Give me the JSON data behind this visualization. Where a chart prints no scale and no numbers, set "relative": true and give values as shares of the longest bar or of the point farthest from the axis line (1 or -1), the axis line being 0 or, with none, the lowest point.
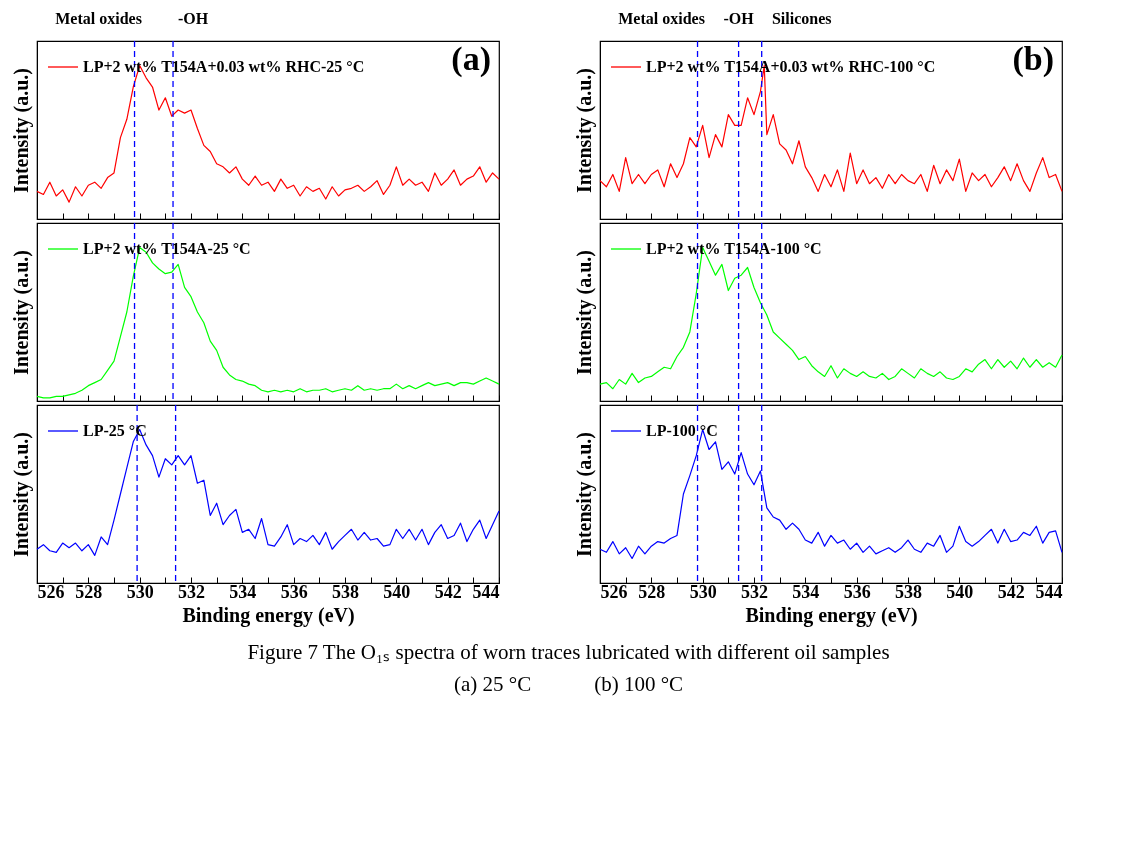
{
  "chart_data": [
    {
      "type": "line",
      "title": "(a)",
      "ylabel": "Intensity (a.u.)",
      "relative": true,
      "legend": "top left",
      "tick_labels": false,
      "xlim": [
        526,
        544
      ],
      "xticks": [
        526,
        {
          "value": 527,
          "label": null
        },
        528,
        {
          "value": 529,
          "label": null
        },
        530,
        {
          "value": 531,
          "label": null
        },
        532,
        {
          "value": 533,
          "label": null
        },
        534,
        {
          "value": 535,
          "label": null
        },
        536,
        {
          "value": 537,
          "label": null
        },
        538,
        {
          "value": 539,
          "label": null
        },
        540,
        {
          "value": 541,
          "label": null
        },
        542,
        {
          "value": 543,
          "label": null
        },
        544
      ],
      "ref_lines": [
        {
          "axis": "x",
          "value": 529.8,
          "color": "#0000ff",
          "line_style": "dashed"
        },
        {
          "axis": "x",
          "value": 531.3,
          "color": "#0000ff",
          "line_style": "dashed"
        }
      ],
      "annotations": [
        "Metal oxides",
        "-OH",
        "Figure 7 The O₁ₛ spectra of worn traces lubricated with different oil samples",
        "(a) 25 °C            (b) 100 °C"
      ],
      "x": [
        526,
        526.25,
        526.5,
        526.75,
        527,
        527.25,
        527.5,
        527.75,
        528,
        528.25,
        528.5,
        528.75,
        529,
        529.25,
        529.5,
        529.75,
        530,
        530.25,
        530.5,
        530.75,
        531,
        531.25,
        531.5,
        531.75,
        532,
        532.25,
        532.5,
        532.75,
        533,
        533.25,
        533.5,
        533.75,
        534,
        534.25,
        534.5,
        534.75,
        535,
        535.25,
        535.5,
        535.75,
        536,
        536.25,
        536.5,
        536.75,
        537,
        537.25,
        537.5,
        537.75,
        538,
        538.25,
        538.5,
        538.75,
        539,
        539.25,
        539.5,
        539.75,
        540,
        540.25,
        540.5,
        540.75,
        541,
        541.25,
        541.5,
        541.75,
        542,
        542.25,
        542.5,
        542.75,
        543,
        543.25,
        543.5,
        543.75,
        544
      ],
      "series": [
        {
          "name": "LP+2 wt% T154A+0.03 wt% RHC-25 °C",
          "color": "#ff0000",
          "values": [
            0.18,
            0.16,
            0.24,
            0.15,
            0.19,
            0.11,
            0.21,
            0.15,
            0.22,
            0.24,
            0.2,
            0.27,
            0.3,
            0.53,
            0.65,
            0.86,
            1.0,
            0.92,
            0.86,
            0.71,
            0.79,
            0.67,
            0.71,
            0.69,
            0.71,
            0.59,
            0.48,
            0.44,
            0.36,
            0.34,
            0.3,
            0.34,
            0.26,
            0.22,
            0.28,
            0.22,
            0.24,
            0.18,
            0.26,
            0.2,
            0.22,
            0.15,
            0.21,
            0.18,
            0.2,
            0.13,
            0.21,
            0.15,
            0.19,
            0.2,
            0.22,
            0.18,
            0.21,
            0.25,
            0.16,
            0.22,
            0.34,
            0.22,
            0.26,
            0.22,
            0.24,
            0.18,
            0.3,
            0.22,
            0.26,
            0.32,
            0.22,
            0.26,
            0.28,
            0.34,
            0.24,
            0.3,
            0.26
          ]
        }
      ]
    },
    {
      "type": "line",
      "title": "(b)",
      "ylabel": "Intensity (a.u.)",
      "relative": true,
      "legend": "top left",
      "tick_labels": false,
      "xlim": [
        526,
        544
      ],
      "xticks": [
        526,
        {
          "value": 527,
          "label": null
        },
        528,
        {
          "value": 529,
          "label": null
        },
        530,
        {
          "value": 531,
          "label": null
        },
        532,
        {
          "value": 533,
          "label": null
        },
        534,
        {
          "value": 535,
          "label": null
        },
        536,
        {
          "value": 537,
          "label": null
        },
        538,
        {
          "value": 539,
          "label": null
        },
        540,
        {
          "value": 541,
          "label": null
        },
        542,
        {
          "value": 543,
          "label": null
        },
        544
      ],
      "ref_lines": [
        {
          "axis": "x",
          "value": 529.8,
          "color": "#0000ff",
          "line_style": "dashed"
        },
        {
          "axis": "x",
          "value": 531.4,
          "color": "#0000ff",
          "line_style": "dashed"
        },
        {
          "axis": "x",
          "value": 532.3,
          "color": "#0000ff",
          "line_style": "dashed"
        }
      ],
      "annotations": [
        "Metal oxides",
        "-OH",
        "Silicones"
      ],
      "x": [
        526,
        526.25,
        526.5,
        526.75,
        527,
        527.25,
        527.5,
        527.75,
        528,
        528.25,
        528.5,
        528.75,
        529,
        529.25,
        529.5,
        529.75,
        530,
        530.25,
        530.5,
        530.75,
        531,
        531.25,
        531.5,
        531.75,
        532,
        532.25,
        532.4,
        532.5,
        532.75,
        533,
        533.25,
        533.5,
        533.75,
        534,
        534.25,
        534.5,
        534.75,
        535,
        535.25,
        535.5,
        535.75,
        536,
        536.25,
        536.5,
        536.75,
        537,
        537.25,
        537.5,
        537.75,
        538,
        538.25,
        538.5,
        538.75,
        539,
        539.25,
        539.5,
        539.75,
        540,
        540.25,
        540.5,
        540.75,
        541,
        541.25,
        541.5,
        541.75,
        542,
        542.25,
        542.5,
        542.75,
        543,
        543.25,
        543.5,
        543.75,
        544
      ],
      "series": [
        {
          "name": "LP+2 wt% T154A+0.03 wt% RHC-100 °C",
          "color": "#ff0000",
          "values": [
            0.25,
            0.21,
            0.29,
            0.18,
            0.4,
            0.23,
            0.29,
            0.23,
            0.29,
            0.32,
            0.21,
            0.36,
            0.27,
            0.36,
            0.53,
            0.47,
            0.61,
            0.4,
            0.55,
            0.47,
            0.68,
            0.61,
            0.61,
            0.79,
            0.68,
            0.83,
            1.0,
            0.55,
            0.68,
            0.49,
            0.45,
            0.36,
            0.51,
            0.34,
            0.27,
            0.18,
            0.29,
            0.21,
            0.32,
            0.18,
            0.43,
            0.23,
            0.32,
            0.23,
            0.27,
            0.2,
            0.29,
            0.23,
            0.29,
            0.25,
            0.23,
            0.29,
            0.18,
            0.35,
            0.23,
            0.32,
            0.25,
            0.39,
            0.18,
            0.3,
            0.25,
            0.29,
            0.21,
            0.27,
            0.34,
            0.25,
            0.36,
            0.25,
            0.18,
            0.3,
            0.4,
            0.27,
            0.29,
            0.18
          ]
        }
      ]
    },
    {
      "type": "line",
      "ylabel": "Intensity (a.u.)",
      "relative": true,
      "legend": "top left",
      "tick_labels": false,
      "xlim": [
        526,
        544
      ],
      "xticks": [
        526,
        {
          "value": 527,
          "label": null
        },
        528,
        {
          "value": 529,
          "label": null
        },
        530,
        {
          "value": 531,
          "label": null
        },
        532,
        {
          "value": 533,
          "label": null
        },
        534,
        {
          "value": 535,
          "label": null
        },
        536,
        {
          "value": 537,
          "label": null
        },
        538,
        {
          "value": 539,
          "label": null
        },
        540,
        {
          "value": 541,
          "label": null
        },
        542,
        {
          "value": 543,
          "label": null
        },
        544
      ],
      "ref_lines": [
        {
          "axis": "x",
          "value": 529.8,
          "color": "#0000ff",
          "line_style": "dashed"
        },
        {
          "axis": "x",
          "value": 531.3,
          "color": "#0000ff",
          "line_style": "dashed"
        }
      ],
      "x": [
        526,
        526.25,
        526.5,
        526.75,
        527,
        527.25,
        527.5,
        527.75,
        528,
        528.25,
        528.5,
        528.75,
        529,
        529.25,
        529.5,
        529.75,
        530,
        530.25,
        530.5,
        530.75,
        531,
        531.25,
        531.5,
        531.75,
        532,
        532.25,
        532.5,
        532.75,
        533,
        533.25,
        533.5,
        533.75,
        534,
        534.25,
        534.5,
        534.75,
        535,
        535.25,
        535.5,
        535.75,
        536,
        536.25,
        536.5,
        536.75,
        537,
        537.25,
        537.5,
        537.75,
        538,
        538.25,
        538.5,
        538.75,
        539,
        539.25,
        539.5,
        539.75,
        540,
        540.25,
        540.5,
        540.75,
        541,
        541.25,
        541.5,
        541.75,
        542,
        542.25,
        542.5,
        542.75,
        543,
        543.25,
        543.5,
        543.75,
        544
      ],
      "series": [
        {
          "name": "LP+2 wt% T154A-25 °C",
          "color": "#00ff00",
          "values": [
            0.03,
            0.02,
            0.02,
            0.03,
            0.03,
            0.04,
            0.05,
            0.07,
            0.1,
            0.12,
            0.14,
            0.2,
            0.26,
            0.42,
            0.58,
            0.81,
            1.0,
            0.97,
            0.9,
            0.86,
            0.83,
            0.84,
            0.89,
            0.74,
            0.68,
            0.58,
            0.51,
            0.39,
            0.33,
            0.22,
            0.17,
            0.14,
            0.13,
            0.11,
            0.1,
            0.07,
            0.06,
            0.07,
            0.06,
            0.07,
            0.06,
            0.08,
            0.06,
            0.07,
            0.07,
            0.08,
            0.06,
            0.07,
            0.08,
            0.07,
            0.1,
            0.07,
            0.08,
            0.07,
            0.08,
            0.08,
            0.11,
            0.08,
            0.1,
            0.08,
            0.1,
            0.12,
            0.1,
            0.11,
            0.12,
            0.1,
            0.12,
            0.12,
            0.11,
            0.13,
            0.15,
            0.13,
            0.11
          ]
        }
      ]
    },
    {
      "type": "line",
      "ylabel": "Intensity (a.u.)",
      "relative": true,
      "legend": "top left",
      "tick_labels": false,
      "xlim": [
        526,
        544
      ],
      "xticks": [
        526,
        {
          "value": 527,
          "label": null
        },
        528,
        {
          "value": 529,
          "label": null
        },
        530,
        {
          "value": 531,
          "label": null
        },
        532,
        {
          "value": 533,
          "label": null
        },
        534,
        {
          "value": 535,
          "label": null
        },
        536,
        {
          "value": 537,
          "label": null
        },
        538,
        {
          "value": 539,
          "label": null
        },
        540,
        {
          "value": 541,
          "label": null
        },
        542,
        {
          "value": 543,
          "label": null
        },
        544
      ],
      "ref_lines": [
        {
          "axis": "x",
          "value": 529.8,
          "color": "#0000ff",
          "line_style": "dashed"
        },
        {
          "axis": "x",
          "value": 531.4,
          "color": "#0000ff",
          "line_style": "dashed"
        },
        {
          "axis": "x",
          "value": 532.3,
          "color": "#0000ff",
          "line_style": "dashed"
        }
      ],
      "x": [
        526,
        526.25,
        526.5,
        526.75,
        527,
        527.25,
        527.5,
        527.75,
        528,
        528.25,
        528.5,
        528.75,
        529,
        529.25,
        529.5,
        529.75,
        530,
        530.25,
        530.5,
        530.75,
        531,
        531.25,
        531.5,
        531.75,
        532,
        532.25,
        532.5,
        532.75,
        533,
        533.25,
        533.5,
        533.75,
        534,
        534.25,
        534.5,
        534.75,
        535,
        535.25,
        535.5,
        535.75,
        536,
        536.25,
        536.5,
        536.75,
        537,
        537.25,
        537.5,
        537.75,
        538,
        538.25,
        538.5,
        538.75,
        539,
        539.25,
        539.5,
        539.75,
        540,
        540.25,
        540.5,
        540.75,
        541,
        541.25,
        541.5,
        541.75,
        542,
        542.25,
        542.5,
        542.75,
        543,
        543.25,
        543.5,
        543.75,
        544
      ],
      "series": [
        {
          "name": "LP+2 wt% T154A-100 °C",
          "color": "#00ff00",
          "values": [
            0.11,
            0.12,
            0.08,
            0.14,
            0.11,
            0.18,
            0.12,
            0.15,
            0.16,
            0.19,
            0.22,
            0.21,
            0.29,
            0.35,
            0.45,
            0.7,
            1.0,
            0.91,
            0.82,
            0.89,
            0.72,
            0.8,
            0.82,
            0.87,
            0.74,
            0.64,
            0.56,
            0.45,
            0.41,
            0.37,
            0.33,
            0.27,
            0.29,
            0.23,
            0.19,
            0.16,
            0.23,
            0.15,
            0.21,
            0.18,
            0.16,
            0.19,
            0.16,
            0.15,
            0.18,
            0.14,
            0.16,
            0.21,
            0.18,
            0.15,
            0.21,
            0.18,
            0.16,
            0.19,
            0.15,
            0.14,
            0.16,
            0.21,
            0.19,
            0.24,
            0.27,
            0.21,
            0.27,
            0.22,
            0.26,
            0.21,
            0.28,
            0.22,
            0.27,
            0.22,
            0.25,
            0.22,
            0.3
          ]
        }
      ]
    },
    {
      "type": "line",
      "xlabel": "Binding energy (eV)",
      "ylabel": "Intensity (a.u.)",
      "relative": true,
      "legend": "top left",
      "tick_labels": "x",
      "xlim": [
        526,
        544
      ],
      "xticks": [
        526,
        {
          "value": 527,
          "label": null
        },
        528,
        {
          "value": 529,
          "label": null
        },
        530,
        {
          "value": 531,
          "label": null
        },
        532,
        {
          "value": 533,
          "label": null
        },
        534,
        {
          "value": 535,
          "label": null
        },
        536,
        {
          "value": 537,
          "label": null
        },
        538,
        {
          "value": 539,
          "label": null
        },
        540,
        {
          "value": 541,
          "label": null
        },
        542,
        {
          "value": 543,
          "label": null
        },
        544
      ],
      "ref_lines": [
        {
          "axis": "x",
          "value": 529.9,
          "color": "#0000ff",
          "line_style": "dashed"
        },
        {
          "axis": "x",
          "value": 531.4,
          "color": "#0000ff",
          "line_style": "dashed"
        }
      ],
      "x": [
        526,
        526.25,
        526.5,
        526.75,
        527,
        527.25,
        527.5,
        527.75,
        528,
        528.25,
        528.5,
        528.75,
        529,
        529.25,
        529.5,
        529.75,
        530,
        530.25,
        530.5,
        530.75,
        531,
        531.25,
        531.5,
        531.75,
        532,
        532.25,
        532.5,
        532.75,
        533,
        533.25,
        533.5,
        533.75,
        534,
        534.25,
        534.5,
        534.75,
        535,
        535.25,
        535.5,
        535.75,
        536,
        536.25,
        536.5,
        536.75,
        537,
        537.25,
        537.5,
        537.75,
        538,
        538.25,
        538.5,
        538.75,
        539,
        539.25,
        539.5,
        539.75,
        540,
        540.25,
        540.5,
        540.75,
        541,
        541.25,
        541.5,
        541.75,
        542,
        542.25,
        542.5,
        542.75,
        543,
        543.25,
        543.5,
        543.75,
        544
      ],
      "series": [
        {
          "name": "LP-25 °C",
          "color": "#0000ff",
          "values": [
            0.22,
            0.25,
            0.21,
            0.2,
            0.26,
            0.23,
            0.26,
            0.21,
            0.25,
            0.18,
            0.3,
            0.25,
            0.41,
            0.58,
            0.75,
            0.92,
            1.0,
            0.9,
            0.83,
            0.69,
            0.81,
            0.77,
            0.83,
            0.77,
            0.83,
            0.65,
            0.67,
            0.44,
            0.52,
            0.38,
            0.44,
            0.48,
            0.33,
            0.35,
            0.29,
            0.42,
            0.25,
            0.24,
            0.3,
            0.38,
            0.25,
            0.29,
            0.27,
            0.31,
            0.25,
            0.33,
            0.22,
            0.27,
            0.31,
            0.35,
            0.28,
            0.33,
            0.28,
            0.29,
            0.24,
            0.25,
            0.35,
            0.29,
            0.35,
            0.28,
            0.35,
            0.25,
            0.33,
            0.38,
            0.29,
            0.31,
            0.39,
            0.27,
            0.35,
            0.41,
            0.29,
            0.38,
            0.47
          ]
        }
      ]
    },
    {
      "type": "line",
      "xlabel": "Binding energy (eV)",
      "ylabel": "Intensity (a.u.)",
      "relative": true,
      "legend": "top left",
      "tick_labels": "x",
      "xlim": [
        526,
        544
      ],
      "xticks": [
        526,
        {
          "value": 527,
          "label": null
        },
        528,
        {
          "value": 529,
          "label": null
        },
        530,
        {
          "value": 531,
          "label": null
        },
        532,
        {
          "value": 533,
          "label": null
        },
        534,
        {
          "value": 535,
          "label": null
        },
        536,
        {
          "value": 537,
          "label": null
        },
        538,
        {
          "value": 539,
          "label": null
        },
        540,
        {
          "value": 541,
          "label": null
        },
        542,
        {
          "value": 543,
          "label": null
        },
        544
      ],
      "ref_lines": [
        {
          "axis": "x",
          "value": 529.8,
          "color": "#0000ff",
          "line_style": "dashed"
        },
        {
          "axis": "x",
          "value": 531.4,
          "color": "#0000ff",
          "line_style": "dashed"
        },
        {
          "axis": "x",
          "value": 532.3,
          "color": "#0000ff",
          "line_style": "dashed"
        }
      ],
      "x": [
        526,
        526.25,
        526.5,
        526.75,
        527,
        527.25,
        527.5,
        527.75,
        528,
        528.25,
        528.5,
        528.75,
        529,
        529.25,
        529.5,
        529.75,
        530,
        530.25,
        530.5,
        530.75,
        531,
        531.25,
        531.5,
        531.75,
        532,
        532.25,
        532.5,
        532.75,
        533,
        533.25,
        533.5,
        533.75,
        534,
        534.25,
        534.5,
        534.75,
        535,
        535.25,
        535.5,
        535.75,
        536,
        536.25,
        536.5,
        536.75,
        537,
        537.25,
        537.5,
        537.75,
        538,
        538.25,
        538.5,
        538.75,
        539,
        539.25,
        539.5,
        539.75,
        540,
        540.25,
        540.5,
        540.75,
        541,
        541.25,
        541.5,
        541.75,
        542,
        542.25,
        542.5,
        542.75,
        543,
        543.25,
        543.5,
        543.75,
        544
      ],
      "series": [
        {
          "name": "LP-100 °C",
          "color": "#0000ff",
          "values": [
            0.22,
            0.2,
            0.27,
            0.19,
            0.23,
            0.16,
            0.24,
            0.19,
            0.24,
            0.27,
            0.26,
            0.29,
            0.31,
            0.58,
            0.7,
            0.83,
            1.0,
            0.87,
            0.92,
            0.74,
            0.79,
            0.71,
            0.85,
            0.71,
            0.64,
            0.73,
            0.49,
            0.43,
            0.41,
            0.35,
            0.39,
            0.35,
            0.28,
            0.26,
            0.33,
            0.24,
            0.31,
            0.26,
            0.28,
            0.22,
            0.26,
            0.2,
            0.24,
            0.19,
            0.21,
            0.23,
            0.2,
            0.23,
            0.28,
            0.22,
            0.2,
            0.26,
            0.24,
            0.31,
            0.2,
            0.24,
            0.37,
            0.27,
            0.24,
            0.27,
            0.31,
            0.35,
            0.26,
            0.35,
            0.27,
            0.28,
            0.33,
            0.31,
            0.37,
            0.26,
            0.33,
            0.34,
            0.2
          ]
        }
      ]
    }
  ]
}
